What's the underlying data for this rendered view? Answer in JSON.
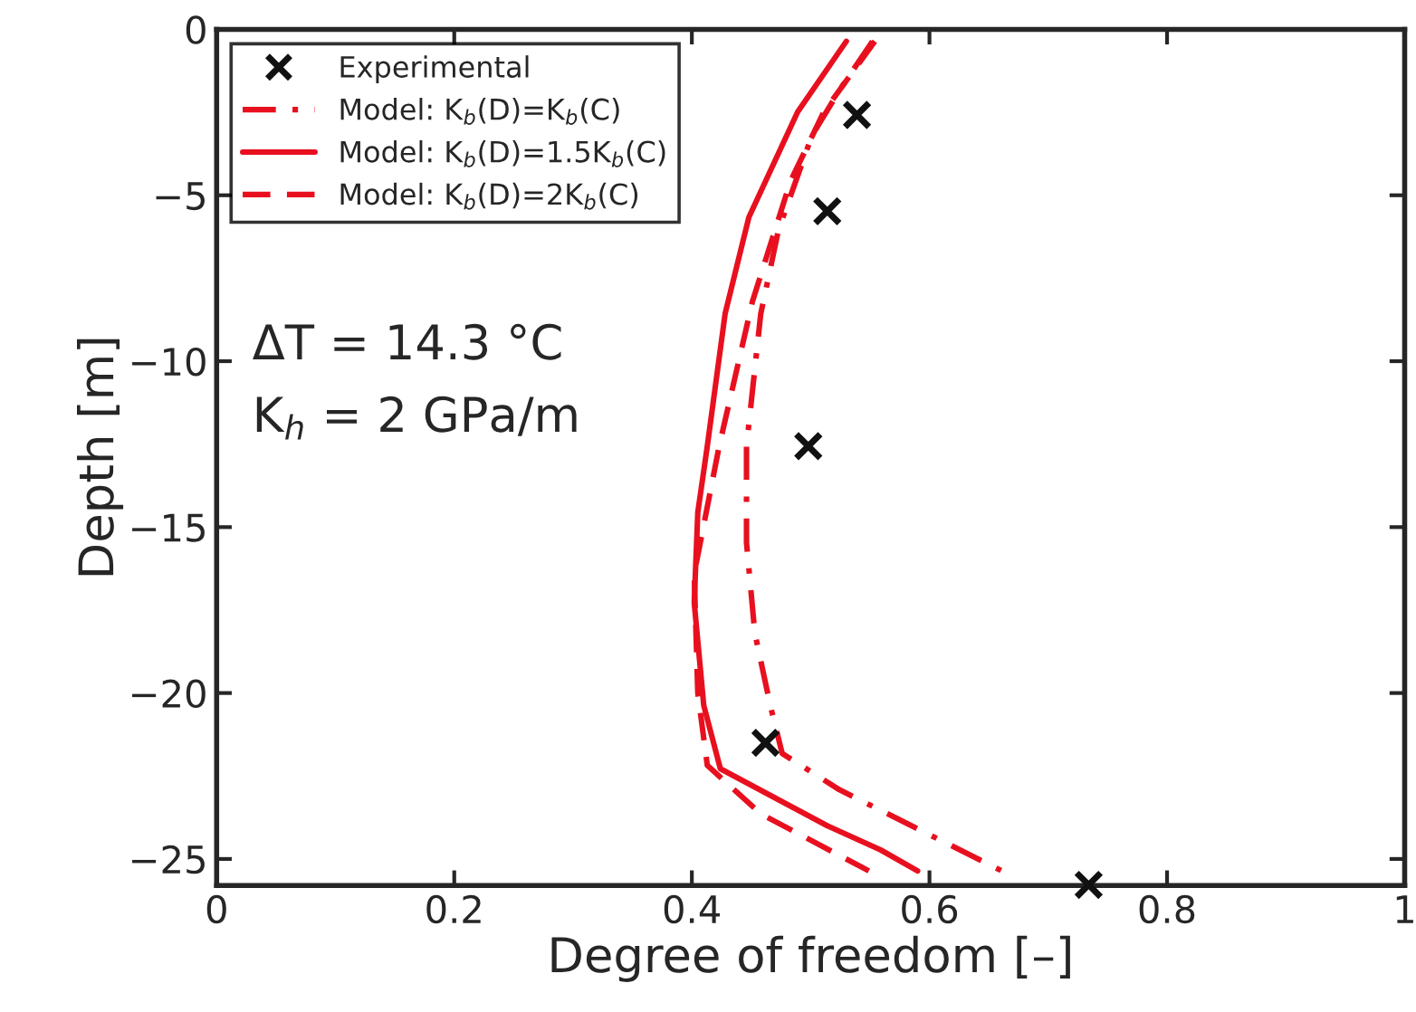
{
  "chart_data": {
    "type": "line",
    "xlabel": "Degree of freedom [–]",
    "ylabel": "Depth [m]",
    "xlim": [
      0,
      1
    ],
    "ylim": [
      -25.8,
      0
    ],
    "xticks": [
      0,
      0.2,
      0.4,
      0.6,
      0.8,
      1
    ],
    "yticks": [
      {
        "value": -25,
        "label": "−25"
      },
      {
        "value": -20,
        "label": "−20"
      },
      {
        "value": -15,
        "label": "−15"
      },
      {
        "value": -10,
        "label": "−10"
      },
      {
        "value": -5,
        "label": "−5"
      },
      {
        "value": 0,
        "label": "0"
      }
    ],
    "grid": false,
    "legend": "top left",
    "annotations": [
      "ΔT = 14.3 °C",
      "K$_{h}$ = 2 GPa/m"
    ],
    "series": [
      {
        "name": "Experimental",
        "type": "scatter",
        "marker": "cross",
        "color": "#111111",
        "x": [
          0.539,
          0.514,
          0.498,
          0.462,
          0.734
        ],
        "values": [
          -2.58,
          -5.48,
          -12.56,
          -21.5,
          -25.78
        ]
      },
      {
        "name": "Model: K$_{b}$(D)=K$_{b}$(C)",
        "line_style": "dashdot",
        "color": "#e8101f",
        "x": [
          0.552,
          0.524,
          0.501,
          0.473,
          0.458,
          0.446,
          0.446,
          0.453,
          0.466,
          0.476,
          0.524,
          0.595,
          0.661
        ],
        "values": [
          -0.36,
          -1.85,
          -3.21,
          -6.03,
          -8.57,
          -12.56,
          -15.47,
          -18.19,
          -20.37,
          -21.82,
          -22.91,
          -24.18,
          -25.36
        ]
      },
      {
        "name": "Model: K$_{b}$(D)=1.5K$_{b}$(C)",
        "line_style": "solid",
        "color": "#e8101f",
        "x": [
          0.53,
          0.489,
          0.448,
          0.428,
          0.413,
          0.405,
          0.402,
          0.41,
          0.424,
          0.514,
          0.559,
          0.59
        ],
        "values": [
          -0.36,
          -2.49,
          -5.66,
          -8.57,
          -12.56,
          -14.56,
          -17.28,
          -20.37,
          -22.28,
          -24.0,
          -24.73,
          -25.36
        ]
      },
      {
        "name": "Model: K$_{b}$(D)=2K$_{b}$(C)",
        "line_style": "dashed",
        "color": "#e8101f",
        "x": [
          0.554,
          0.511,
          0.483,
          0.451,
          0.423,
          0.402,
          0.405,
          0.413,
          0.458,
          0.549
        ],
        "values": [
          -0.36,
          -2.49,
          -4.58,
          -8.2,
          -12.56,
          -16.4,
          -20.0,
          -22.18,
          -23.64,
          -25.36
        ]
      }
    ]
  }
}
